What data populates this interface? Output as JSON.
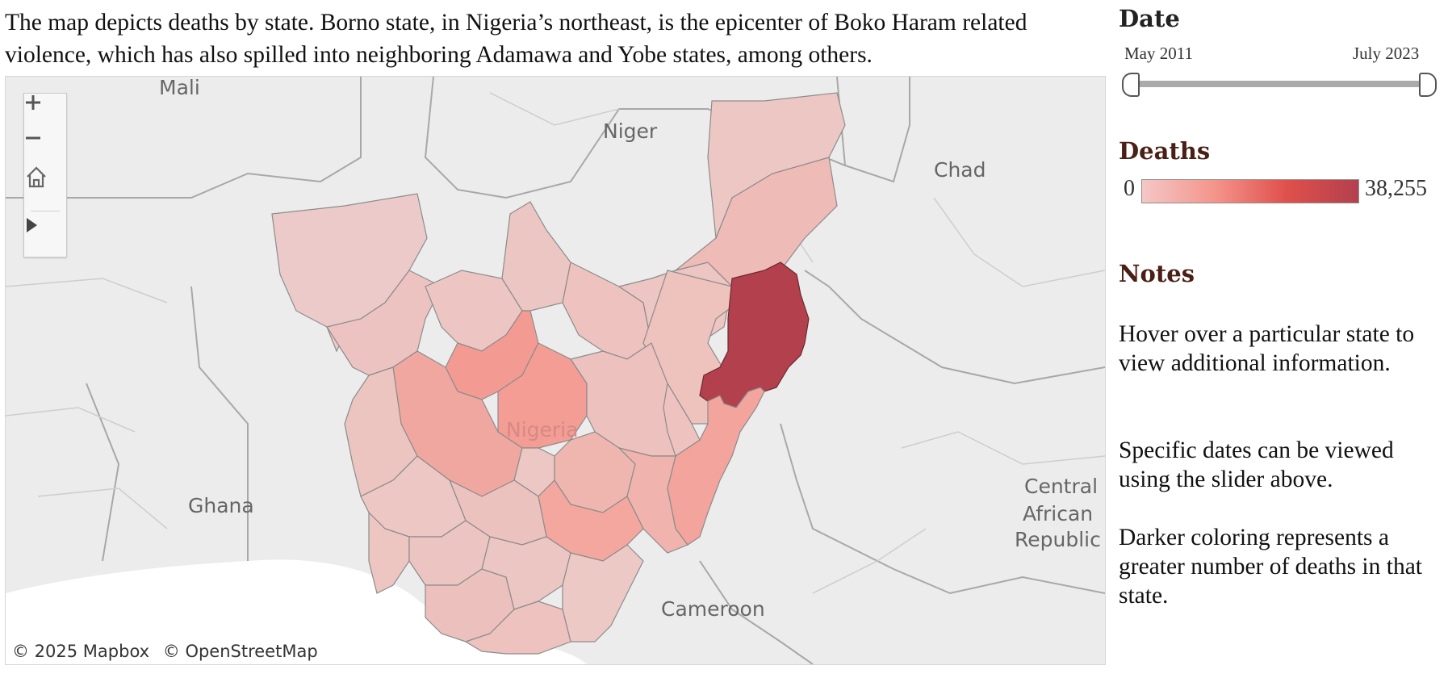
{
  "caption": "The map depicts deaths by state. Borno state, in Nigeria’s northeast, is the epicenter of Boko Haram related violence, which has also spilled into neighboring Adamawa and Yobe states, among others.",
  "map": {
    "country_labels": [
      "Mali",
      "Niger",
      "Chad",
      "Nigeria",
      "Ghana",
      "Central",
      "African",
      "Republic",
      "Cameroon"
    ],
    "attribution": [
      "© 2025 Mapbox",
      "© OpenStreetMap"
    ],
    "controls": {
      "zoom_in": "+",
      "zoom_out": "−",
      "home_icon": "home-icon",
      "play_icon": "play-icon"
    }
  },
  "date_filter": {
    "title": "Date",
    "min_label": "May 2011",
    "max_label": "July 2023",
    "selected_range": [
      0,
      1
    ]
  },
  "legend": {
    "title": "Deaths",
    "min": "0",
    "max": "38,255",
    "colors": [
      "#f4c7c6",
      "#f4958c",
      "#e0504c",
      "#b3404d"
    ]
  },
  "notes": {
    "title": "Notes",
    "items": [
      "Hover over a particular state to view additional information.",
      "Specific dates can be viewed using the slider above.",
      "Darker coloring represents a greater number of deaths in that state."
    ]
  }
}
